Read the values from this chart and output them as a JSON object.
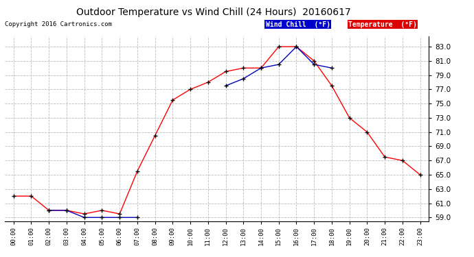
{
  "title": "Outdoor Temperature vs Wind Chill (24 Hours)  20160617",
  "copyright": "Copyright 2016 Cartronics.com",
  "x_labels": [
    "00:00",
    "01:00",
    "02:00",
    "03:00",
    "04:00",
    "05:00",
    "06:00",
    "07:00",
    "08:00",
    "09:00",
    "10:00",
    "11:00",
    "12:00",
    "13:00",
    "14:00",
    "15:00",
    "16:00",
    "17:00",
    "18:00",
    "19:00",
    "20:00",
    "21:00",
    "22:00",
    "23:00"
  ],
  "temp_color": "#ff0000",
  "windchill_color": "#0000bb",
  "marker": "+",
  "background_color": "#ffffff",
  "grid_color": "#bbbbbb",
  "ylim": [
    58.5,
    84.5
  ],
  "yticks": [
    59.0,
    61.0,
    63.0,
    65.0,
    67.0,
    69.0,
    71.0,
    73.0,
    75.0,
    77.0,
    79.0,
    81.0,
    83.0
  ],
  "temperature": [
    62.0,
    62.0,
    60.0,
    60.0,
    59.5,
    60.0,
    59.5,
    65.5,
    70.5,
    75.5,
    77.0,
    78.0,
    79.5,
    80.0,
    80.0,
    83.0,
    83.0,
    81.0,
    77.5,
    73.0,
    71.0,
    67.5,
    67.0,
    65.0
  ],
  "windchill": [
    null,
    null,
    60.0,
    60.0,
    59.0,
    59.0,
    59.0,
    59.0,
    null,
    null,
    null,
    null,
    77.5,
    78.5,
    80.0,
    80.5,
    83.0,
    80.5,
    80.0,
    null,
    null,
    null,
    null,
    null
  ],
  "legend_windchill_bg": "#0000cc",
  "legend_temp_bg": "#dd0000",
  "legend_windchill_text": "Wind Chill  (°F)",
  "legend_temp_text": "Temperature  (°F)"
}
